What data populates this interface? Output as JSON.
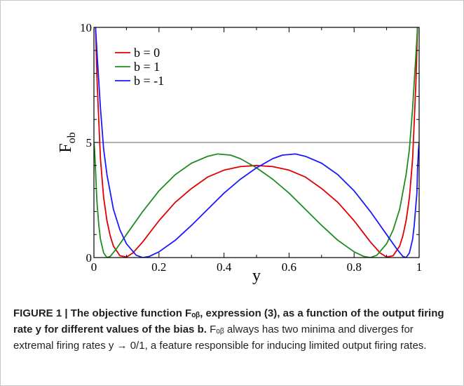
{
  "chart_data": {
    "type": "line",
    "xlabel": "y",
    "ylabel": "F",
    "ylabel_sub": "ob",
    "xlim": [
      0,
      1
    ],
    "ylim": [
      0,
      10
    ],
    "x_ticks": [
      0,
      0.2,
      0.4,
      0.6,
      0.8,
      1
    ],
    "x_tick_labels": [
      "0",
      "0.2",
      "0.4",
      "0.6",
      "0.8",
      "1"
    ],
    "y_ticks": [
      0,
      5,
      10
    ],
    "y_tick_labels": [
      "0",
      "5",
      "10"
    ],
    "reference_line": {
      "y": 5,
      "color": "#808080"
    },
    "grid": false,
    "legend_position": "top-left",
    "series": [
      {
        "name": "b = 0",
        "color": "#e00000",
        "x": [
          0.005,
          0.01,
          0.02,
          0.03,
          0.04,
          0.05,
          0.06,
          0.08,
          0.1,
          0.12,
          0.15,
          0.2,
          0.25,
          0.3,
          0.35,
          0.4,
          0.45,
          0.5,
          0.55,
          0.6,
          0.65,
          0.7,
          0.75,
          0.8,
          0.85,
          0.88,
          0.9,
          0.92,
          0.94,
          0.95,
          0.96,
          0.97,
          0.98,
          0.99,
          0.995
        ],
        "y": [
          10.0,
          7.6,
          4.3,
          2.6,
          1.6,
          0.95,
          0.5,
          0.08,
          0.02,
          0.2,
          0.68,
          1.6,
          2.4,
          3.0,
          3.5,
          3.8,
          3.95,
          4.0,
          3.95,
          3.8,
          3.5,
          3.0,
          2.4,
          1.6,
          0.68,
          0.2,
          0.02,
          0.08,
          0.5,
          0.95,
          1.6,
          2.6,
          4.3,
          7.6,
          10.0
        ]
      },
      {
        "name": "b = 1",
        "color": "#1e8c1e",
        "x": [
          0.0,
          0.002,
          0.005,
          0.008,
          0.01,
          0.015,
          0.02,
          0.03,
          0.04,
          0.05,
          0.07,
          0.1,
          0.15,
          0.2,
          0.25,
          0.3,
          0.35,
          0.38,
          0.42,
          0.45,
          0.5,
          0.55,
          0.6,
          0.65,
          0.7,
          0.75,
          0.8,
          0.83,
          0.85,
          0.87,
          0.9,
          0.92,
          0.94,
          0.96,
          0.97,
          0.98,
          0.99,
          0.995
        ],
        "y": [
          5.0,
          4.7,
          3.8,
          2.8,
          2.3,
          1.4,
          0.8,
          0.2,
          0.0,
          0.05,
          0.4,
          1.0,
          2.0,
          2.9,
          3.6,
          4.1,
          4.4,
          4.5,
          4.45,
          4.3,
          3.9,
          3.4,
          2.8,
          2.1,
          1.4,
          0.75,
          0.25,
          0.05,
          0.0,
          0.1,
          0.6,
          1.2,
          2.1,
          3.6,
          4.7,
          6.5,
          8.8,
          10.0
        ]
      },
      {
        "name": "b = -1",
        "color": "#1a1aff",
        "x": [
          0.005,
          0.01,
          0.02,
          0.03,
          0.04,
          0.06,
          0.08,
          0.1,
          0.13,
          0.15,
          0.17,
          0.2,
          0.25,
          0.3,
          0.35,
          0.4,
          0.45,
          0.5,
          0.55,
          0.58,
          0.62,
          0.65,
          0.7,
          0.75,
          0.8,
          0.85,
          0.9,
          0.93,
          0.95,
          0.96,
          0.97,
          0.98,
          0.985,
          0.99,
          0.993,
          0.995,
          0.998,
          1.0
        ],
        "y": [
          10.0,
          8.8,
          6.5,
          4.7,
          3.6,
          2.1,
          1.2,
          0.6,
          0.1,
          0.0,
          0.05,
          0.25,
          0.75,
          1.4,
          2.1,
          2.8,
          3.4,
          3.9,
          4.3,
          4.45,
          4.5,
          4.4,
          4.1,
          3.6,
          2.9,
          2.0,
          1.0,
          0.4,
          0.05,
          0.0,
          0.2,
          0.8,
          1.4,
          2.3,
          2.8,
          3.8,
          4.7,
          5.0
        ]
      }
    ]
  },
  "caption": {
    "bold_text": "FIGURE 1 | The objective function Fₒᵦ, expression (3), as a function of the output firing rate y for different values of the bias b.",
    "regular_text": " Fₒᵦ always has two minima and diverges for extremal firing rates y → 0/1, a feature responsible for inducing limited output firing rates."
  }
}
